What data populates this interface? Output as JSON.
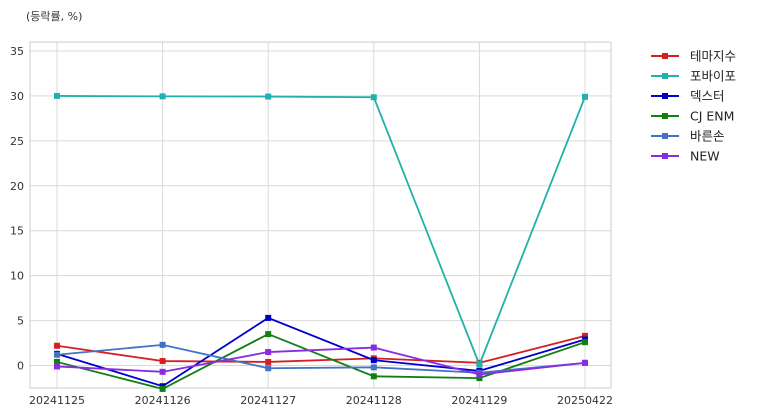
{
  "chart_data": {
    "type": "line",
    "unit_label": "(등락률, %)",
    "x": [
      "20241125",
      "20241126",
      "20241127",
      "20241128",
      "20241129",
      "20250422"
    ],
    "ylim": [
      -2.5,
      36
    ],
    "yticks": [
      0,
      5,
      10,
      15,
      20,
      25,
      30,
      35
    ],
    "grid": true,
    "legend_position": "outside-right",
    "series": [
      {
        "name": "테마지수",
        "color": "#d62020",
        "values": [
          2.2,
          0.5,
          0.4,
          0.8,
          0.3,
          3.3
        ]
      },
      {
        "name": "포바이포",
        "color": "#20b2aa",
        "values": [
          30.0,
          29.95,
          29.93,
          29.85,
          0.1,
          29.9
        ]
      },
      {
        "name": "덱스터",
        "color": "#0000cd",
        "values": [
          1.3,
          -2.3,
          5.3,
          0.6,
          -0.6,
          2.9
        ]
      },
      {
        "name": "CJ ENM",
        "color": "#108010",
        "values": [
          0.4,
          -2.6,
          3.5,
          -1.2,
          -1.4,
          2.6
        ]
      },
      {
        "name": "바른손",
        "color": "#4472c4",
        "values": [
          1.2,
          2.3,
          -0.3,
          -0.2,
          -0.8,
          0.3
        ]
      },
      {
        "name": "NEW",
        "color": "#8a2be2",
        "values": [
          -0.1,
          -0.7,
          1.5,
          2.0,
          -1.0,
          0.3
        ]
      }
    ]
  }
}
